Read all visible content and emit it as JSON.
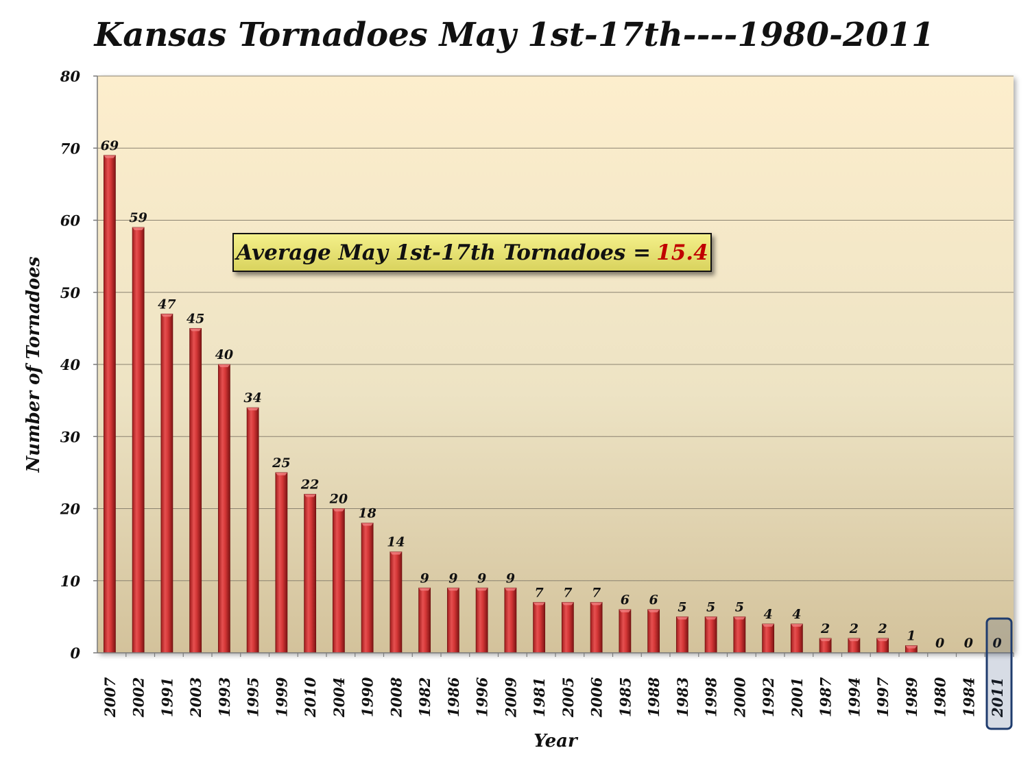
{
  "chart_data": {
    "type": "bar",
    "title": "Kansas Tornadoes May 1st-17th----1980-2011",
    "xlabel": "Year",
    "ylabel": "Number of Tornadoes",
    "ylim": [
      0,
      80
    ],
    "yticks": [
      0,
      10,
      20,
      30,
      40,
      50,
      60,
      70,
      80
    ],
    "grid": true,
    "categories": [
      "2007",
      "2002",
      "1991",
      "2003",
      "1993",
      "1995",
      "1999",
      "2010",
      "2004",
      "1990",
      "2008",
      "1982",
      "1986",
      "1996",
      "2009",
      "1981",
      "2005",
      "2006",
      "1985",
      "1988",
      "1983",
      "1998",
      "2000",
      "1992",
      "2001",
      "1987",
      "1994",
      "1997",
      "1989",
      "1980",
      "1984",
      "2011"
    ],
    "values": [
      69,
      59,
      47,
      45,
      40,
      34,
      25,
      22,
      20,
      18,
      14,
      9,
      9,
      9,
      9,
      7,
      7,
      7,
      6,
      6,
      5,
      5,
      5,
      4,
      4,
      2,
      2,
      2,
      1,
      0,
      0,
      0
    ],
    "highlighted_category": "2011",
    "bar_color": "#d63a3a",
    "highlight_color": "#1f3c6e"
  },
  "annotation": {
    "label": "Average May 1st-17th Tornadoes =",
    "value": "15.4",
    "value_color": "#c00000"
  }
}
